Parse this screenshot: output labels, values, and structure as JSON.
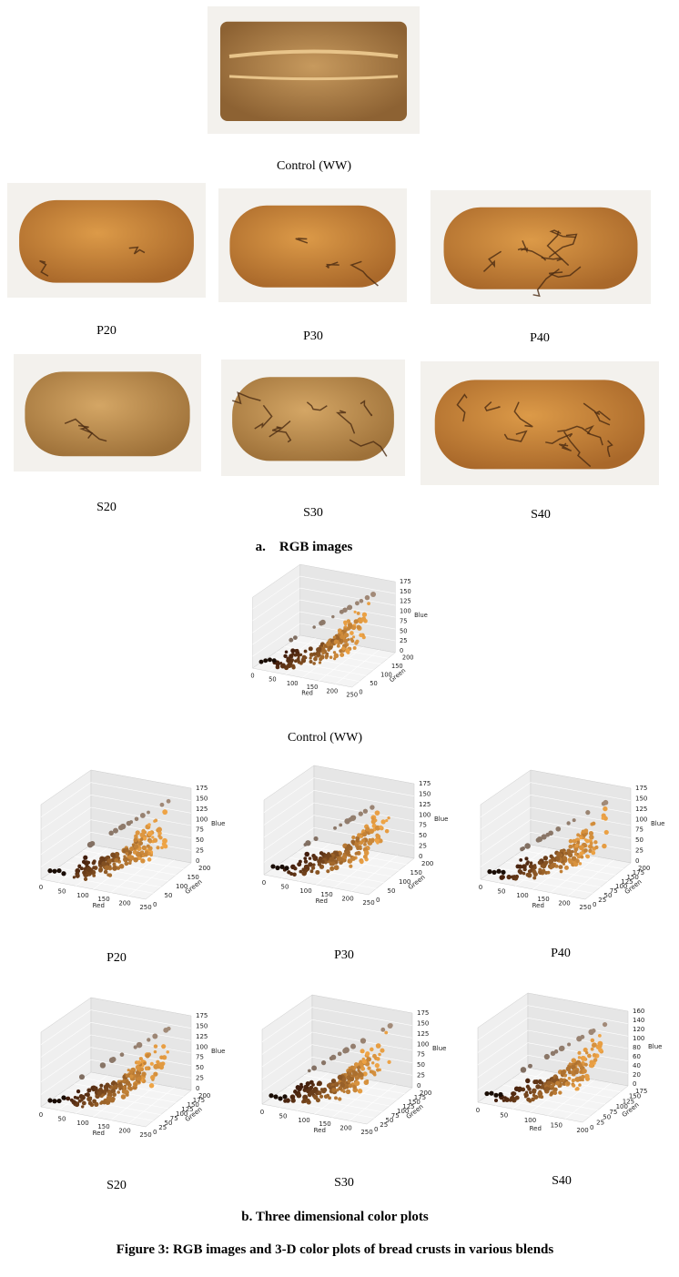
{
  "figure": {
    "rgb_images": {
      "items": [
        {
          "caption": "Control (WW)"
        },
        {
          "caption": "P20"
        },
        {
          "caption": "P30"
        },
        {
          "caption": "P40"
        },
        {
          "caption": "S20"
        },
        {
          "caption": "S30"
        },
        {
          "caption": "S40"
        }
      ],
      "label": "a.    RGB images"
    },
    "color_plots": {
      "items": [
        {
          "caption": "Control (WW)",
          "x_label": "Red",
          "y_label": "Green",
          "z_label": "Blue",
          "red_ticks": [
            0,
            50,
            100,
            150,
            200,
            250
          ],
          "green_ticks": [
            0,
            50,
            100,
            150,
            200
          ],
          "blue_ticks": [
            0,
            25,
            50,
            75,
            100,
            125,
            150,
            175
          ]
        },
        {
          "caption": "P20",
          "x_label": "Red",
          "y_label": "Green",
          "z_label": "Blue",
          "red_ticks": [
            0,
            50,
            100,
            150,
            200,
            250
          ],
          "green_ticks": [
            0,
            50,
            100,
            150,
            200
          ],
          "blue_ticks": [
            0,
            25,
            50,
            75,
            100,
            125,
            150,
            175
          ]
        },
        {
          "caption": "P30",
          "x_label": "Red",
          "y_label": "Green",
          "z_label": "Blue",
          "red_ticks": [
            0,
            50,
            100,
            150,
            200,
            250
          ],
          "green_ticks": [
            0,
            50,
            100,
            150,
            200
          ],
          "blue_ticks": [
            0,
            25,
            50,
            75,
            100,
            125,
            150,
            175
          ]
        },
        {
          "caption": "P40",
          "x_label": "Red",
          "y_label": "Green",
          "z_label": "Blue",
          "red_ticks": [
            0,
            50,
            100,
            150,
            200,
            250
          ],
          "green_ticks": [
            0,
            25,
            50,
            75,
            100,
            125,
            150,
            175,
            200
          ],
          "blue_ticks": [
            0,
            25,
            50,
            75,
            100,
            125,
            150,
            175
          ]
        },
        {
          "caption": "S20",
          "x_label": "Red",
          "y_label": "Green",
          "z_label": "Blue",
          "red_ticks": [
            0,
            50,
            100,
            150,
            200,
            250
          ],
          "green_ticks": [
            0,
            25,
            50,
            75,
            100,
            125,
            150,
            175,
            200
          ],
          "blue_ticks": [
            0,
            25,
            50,
            75,
            100,
            125,
            150,
            175
          ]
        },
        {
          "caption": "S30",
          "x_label": "Red",
          "y_label": "Green",
          "z_label": "Blue",
          "red_ticks": [
            0,
            50,
            100,
            150,
            200,
            250
          ],
          "green_ticks": [
            0,
            25,
            50,
            75,
            100,
            125,
            150,
            175,
            200
          ],
          "blue_ticks": [
            0,
            25,
            50,
            75,
            100,
            125,
            150,
            175
          ]
        },
        {
          "caption": "S40",
          "x_label": "Red",
          "y_label": "Green",
          "z_label": "Blue",
          "red_ticks": [
            0,
            50,
            100,
            150,
            200
          ],
          "green_ticks": [
            0,
            25,
            50,
            75,
            100,
            125,
            150,
            175
          ],
          "blue_ticks": [
            0,
            20,
            40,
            60,
            80,
            100,
            120,
            140,
            160
          ]
        }
      ],
      "label": "b. Three dimensional color plots"
    },
    "caption": "Figure 3: RGB images and 3-D color plots of bread crusts in various blends"
  }
}
